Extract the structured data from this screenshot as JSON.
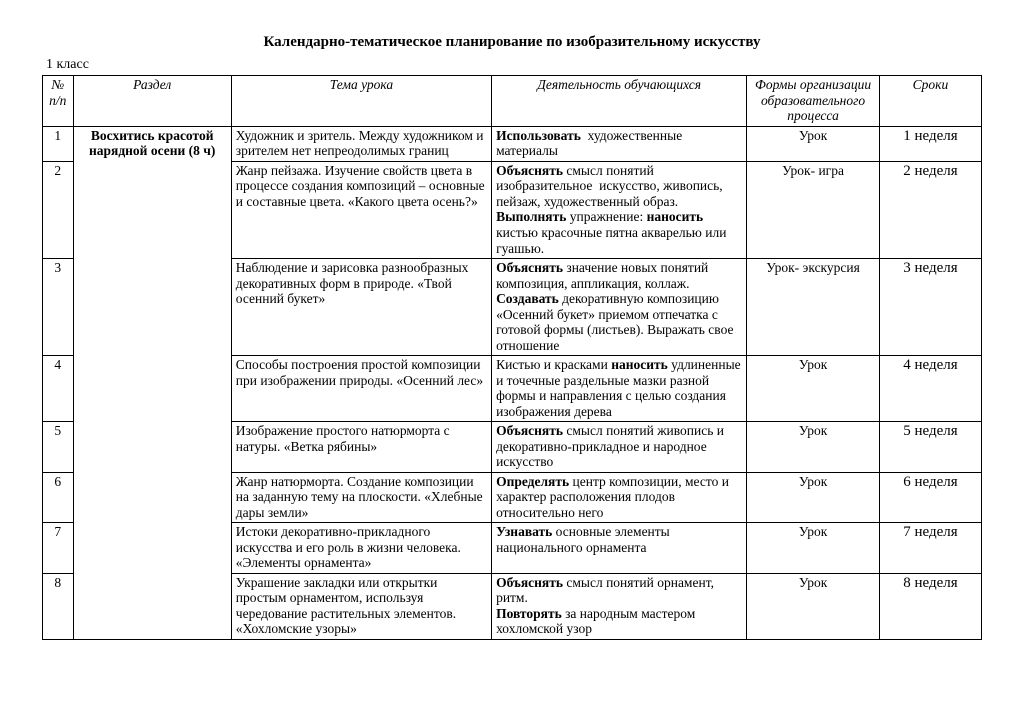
{
  "title": "Календарно-тематическое планирование по изобразительному искусству",
  "subtitle": "1 класс",
  "columns": {
    "num": "№ п/п",
    "section": "Раздел",
    "topic": "Тема урока",
    "activity": "Деятельность обучающихся",
    "form": "Формы организации образовательного процесса",
    "time": "Сроки"
  },
  "section": "Восхитись красотой нарядной осени (8 ч)",
  "rows": [
    {
      "n": "1",
      "topic": "Художник и зритель. Между художником и зрителем нет непреодолимых границ",
      "activity": "<span class=\"b\">Использовать</span>  художественные материалы",
      "form": "Урок",
      "time": "1 неделя"
    },
    {
      "n": "2",
      "topic": "Жанр пейзажа. Изучение свойств цвета в процессе создания композиций – основные и составные цвета. «Какого цвета осень?»",
      "activity": "<span class=\"b\">Объяснять</span> смысл понятий изобразительное  искусство, живопись, пейзаж, художественный образ. <span class=\"b\">Выполнять</span> упражнение: <span class=\"b\">наносить</span> кистью красочные пятна акварелью или гуашью.",
      "form": "Урок- игра",
      "time": "2 неделя"
    },
    {
      "n": "3",
      "topic": "Наблюдение и зарисовка разнообразных декоративных форм в природе. «Твой осенний букет»",
      "activity": "<span class=\"b\">Объяснять</span> значение новых понятий композиция, аппликация, коллаж. <span class=\"b\">Создавать</span> декоративную композицию «Осенний букет» приемом отпечатка с готовой формы (листьев). Выражать свое отношение",
      "form": "Урок- экскурсия",
      "time": "3 неделя"
    },
    {
      "n": "4",
      "topic": "Способы построения простой композиции при изображении природы. «Осенний лес»",
      "activity": "Кистью и красками <span class=\"b\">наносить</span> удлиненные и точечные раздельные мазки разной формы и направления с целью создания изображения дерева",
      "form": "Урок",
      "time": "4 неделя"
    },
    {
      "n": "5",
      "topic": "Изображение простого натюрморта с натуры. «Ветка рябины»",
      "activity": "<span class=\"b\">Объяснять</span> смысл понятий живопись и декоративно-прикладное и народное искусство",
      "form": "Урок",
      "time": "5 неделя"
    },
    {
      "n": "6",
      "topic": "Жанр натюрморта. Создание композиции на заданную тему на плоскости. «Хлебные дары земли»",
      "activity": "<span class=\"b\">Определять</span> центр композиции, место и характер расположения плодов относительно него",
      "form": "Урок",
      "time": "6 неделя"
    },
    {
      "n": "7",
      "topic": "Истоки декоративно-прикладного искусства и его роль в жизни человека. «Элементы орнамента»",
      "activity": "<span class=\"b\">Узнавать</span> основные элементы национального орнамента",
      "form": "Урок",
      "time": "7 неделя"
    },
    {
      "n": "8",
      "topic": "Украшение закладки или открытки простым орнаментом, используя чередование растительных элементов. «Хохломские узоры»",
      "activity": "<span class=\"b\">Объяснять</span> смысл понятий орнамент, ритм.<br><span class=\"b\">Повторять</span> за народным мастером хохломской узор",
      "form": "Урок",
      "time": "8 неделя"
    }
  ]
}
